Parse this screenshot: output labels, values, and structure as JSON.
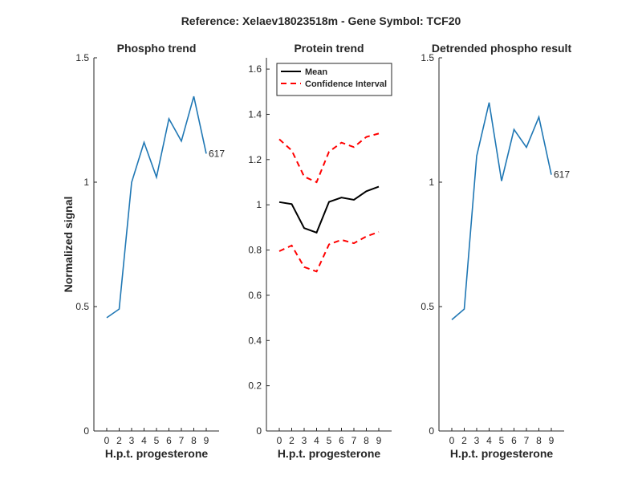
{
  "figure": {
    "suptitle": "Reference:  Xelaev18023518m - Gene Symbol:  TCF20"
  },
  "colors": {
    "phospho": "#1f77b4",
    "mean": "#000000",
    "ci": "#ff0000",
    "axis": "#262626"
  },
  "chart_data": [
    {
      "type": "line",
      "title": "Phospho trend",
      "xlabel": "H.p.t. progesterone",
      "ylabel": "Normalized signal",
      "x_ticklabels": [
        "0",
        "2",
        "3",
        "4",
        "5",
        "6",
        "7",
        "8",
        "9"
      ],
      "ylim": [
        0,
        1.5
      ],
      "y_ticks": [
        0,
        0.5,
        1,
        1.5
      ],
      "y_ticklabels": [
        "0",
        "0.5",
        "1",
        "1.5"
      ],
      "series": [
        {
          "values": [
            0.455,
            0.49,
            0.999,
            1.16,
            1.02,
            1.255,
            1.165,
            1.345,
            1.115
          ],
          "end_label": "617"
        }
      ]
    },
    {
      "type": "line",
      "title": "Protein trend",
      "xlabel": "H.p.t. progesterone",
      "ylabel": "",
      "x_ticklabels": [
        "0",
        "2",
        "3",
        "4",
        "5",
        "6",
        "7",
        "8",
        "9"
      ],
      "ylim": [
        0,
        1.65
      ],
      "y_ticks": [
        0,
        0.2,
        0.4,
        0.6,
        0.8,
        1,
        1.2,
        1.4,
        1.6
      ],
      "y_ticklabels": [
        "0",
        "0.2",
        "0.4",
        "0.6",
        "0.8",
        "1",
        "1.2",
        "1.4",
        "1.6"
      ],
      "legend_position": "top-left",
      "series": [
        {
          "name": "Mean",
          "style": "solid",
          "values": [
            1.012,
            1.003,
            0.897,
            0.877,
            1.013,
            1.032,
            1.022,
            1.06,
            1.08
          ]
        },
        {
          "name": "Confidence Interval",
          "style": "dashed",
          "values": [
            1.29,
            1.24,
            1.125,
            1.1,
            1.235,
            1.275,
            1.255,
            1.3,
            1.315
          ]
        },
        {
          "name": "",
          "style": "dashed",
          "values": [
            0.795,
            0.82,
            0.725,
            0.705,
            0.825,
            0.845,
            0.83,
            0.86,
            0.88
          ]
        }
      ]
    },
    {
      "type": "line",
      "title": "Detrended phospho result",
      "xlabel": "H.p.t. progesterone",
      "ylabel": "",
      "x_ticklabels": [
        "0",
        "2",
        "3",
        "4",
        "5",
        "6",
        "7",
        "8",
        "9"
      ],
      "ylim": [
        0,
        1.5
      ],
      "y_ticks": [
        0,
        0.5,
        1,
        1.5
      ],
      "y_ticklabels": [
        "0",
        "0.5",
        "1",
        "1.5"
      ],
      "series": [
        {
          "values": [
            0.447,
            0.49,
            1.105,
            1.32,
            1.005,
            1.212,
            1.14,
            1.262,
            1.03
          ],
          "end_label": "617"
        }
      ]
    }
  ]
}
